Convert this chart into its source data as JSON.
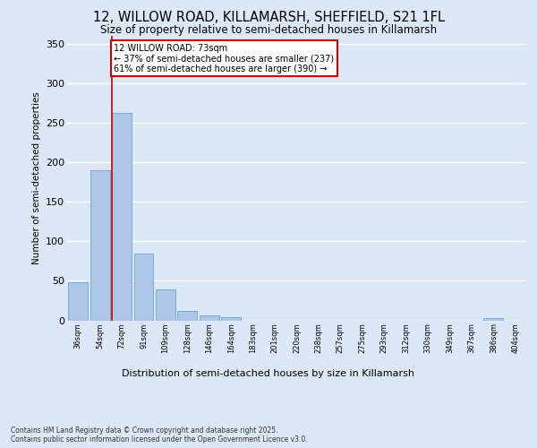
{
  "title_line1": "12, WILLOW ROAD, KILLAMARSH, SHEFFIELD, S21 1FL",
  "title_line2": "Size of property relative to semi-detached houses in Killamarsh",
  "xlabel": "Distribution of semi-detached houses by size in Killamarsh",
  "ylabel": "Number of semi-detached properties",
  "categories": [
    "36sqm",
    "54sqm",
    "72sqm",
    "91sqm",
    "109sqm",
    "128sqm",
    "146sqm",
    "164sqm",
    "183sqm",
    "201sqm",
    "220sqm",
    "238sqm",
    "257sqm",
    "275sqm",
    "293sqm",
    "312sqm",
    "330sqm",
    "349sqm",
    "367sqm",
    "386sqm",
    "404sqm"
  ],
  "values": [
    48,
    190,
    262,
    84,
    39,
    12,
    6,
    4,
    0,
    0,
    0,
    0,
    0,
    0,
    0,
    0,
    0,
    0,
    0,
    3,
    0
  ],
  "bar_color": "#aec6e8",
  "bar_edge_color": "#5b9bd5",
  "annotation_text_line1": "12 WILLOW ROAD: 73sqm",
  "annotation_text_line2": "← 37% of semi-detached houses are smaller (237)",
  "annotation_text_line3": "61% of semi-detached houses are larger (390) →",
  "vline_x_index": 2,
  "vline_color": "#cc0000",
  "annotation_box_color": "#ffffff",
  "annotation_box_edge_color": "#cc0000",
  "ylim": [
    0,
    360
  ],
  "background_color": "#dce8f8",
  "axes_background": "#dce8f8",
  "grid_color": "#ffffff",
  "footer_line1": "Contains HM Land Registry data © Crown copyright and database right 2025.",
  "footer_line2": "Contains public sector information licensed under the Open Government Licence v3.0."
}
